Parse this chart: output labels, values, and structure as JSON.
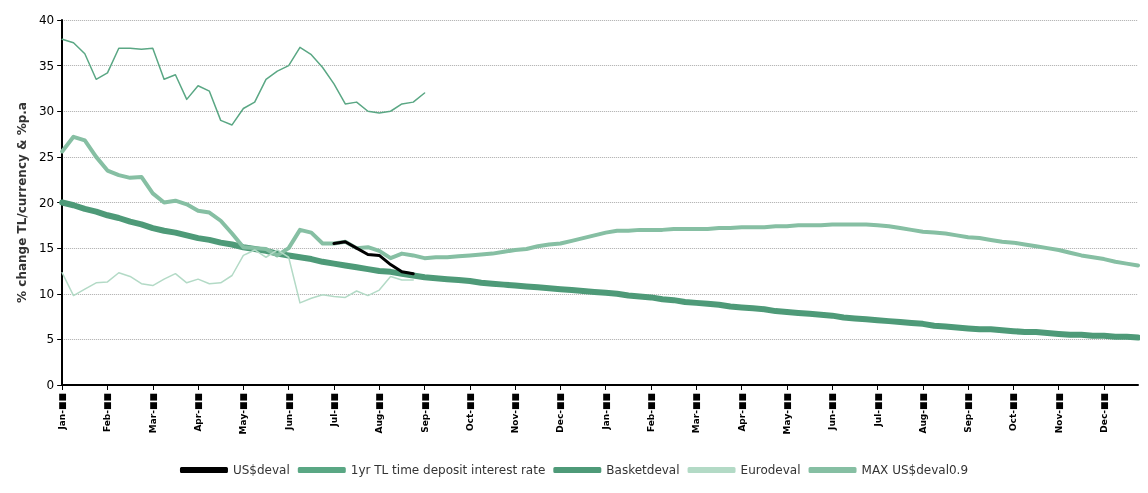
{
  "chart_data": {
    "type": "line",
    "ylabel": "% change TL/currency & %p.a",
    "categories": [
      "Jan-■■",
      null,
      null,
      null,
      "Feb-■■",
      null,
      null,
      null,
      "Mar-■■",
      null,
      null,
      null,
      "Apr-■■",
      null,
      null,
      null,
      "May-■■",
      null,
      null,
      null,
      "Jun-■■",
      null,
      null,
      null,
      "Jul-■■",
      null,
      null,
      null,
      "Aug-■■",
      null,
      null,
      null,
      "Sep-■■",
      null,
      null,
      null,
      "Oct-■■",
      null,
      null,
      null,
      "Nov-■■",
      null,
      null,
      null,
      "Dec-■■",
      null,
      null,
      null,
      "Jan-■■",
      null,
      null,
      null,
      "Feb-■■",
      null,
      null,
      null,
      "Mar-■■",
      null,
      null,
      null,
      "Apr-■■",
      null,
      null,
      null,
      "May-■■",
      null,
      null,
      null,
      "Jun-■■",
      null,
      null,
      null,
      "Jul-■■",
      null,
      null,
      null,
      "Aug-■■",
      null,
      null,
      null,
      "Sep-■■",
      null,
      null,
      null,
      "Oct-■■",
      null,
      null,
      null,
      "Nov-■■",
      null,
      null,
      null,
      "Dec-■■",
      null,
      null,
      null
    ],
    "ylim": [
      0,
      40
    ],
    "yticks": [
      0,
      5,
      10,
      15,
      20,
      25,
      30,
      35,
      40
    ],
    "grid": "y",
    "legend": "bottom",
    "marker": "none",
    "line_style": "solid",
    "series": [
      {
        "name": "US$deval",
        "color": "#000000",
        "values": [
          null,
          null,
          null,
          null,
          null,
          null,
          null,
          null,
          null,
          null,
          null,
          null,
          null,
          null,
          null,
          null,
          null,
          null,
          null,
          null,
          null,
          null,
          null,
          null,
          15.5,
          15.7,
          15.0,
          14.3,
          14.2,
          13.2,
          12.4,
          12.2,
          null,
          null,
          null,
          null,
          null,
          null,
          null,
          null,
          null,
          null,
          null,
          null,
          null,
          null,
          null,
          null,
          null,
          null,
          null,
          null,
          null,
          null,
          null,
          null,
          null,
          null,
          null,
          null,
          null,
          null,
          null,
          null,
          null,
          null,
          null,
          null,
          null,
          null,
          null,
          null,
          null,
          null,
          null,
          null,
          null,
          null,
          null,
          null,
          null,
          null,
          null,
          null,
          null,
          null,
          null,
          null,
          null,
          null,
          null,
          null,
          null,
          null,
          null,
          null
        ]
      },
      {
        "name": "1yr TL time deposit interest rate",
        "color": "#5aa784",
        "values": [
          37.9,
          37.5,
          36.3,
          33.5,
          34.2,
          36.9,
          36.9,
          36.8,
          36.9,
          33.5,
          34,
          31.3,
          32.8,
          32.2,
          29,
          28.5,
          30.3,
          31,
          33.5,
          34.4,
          35,
          37,
          36.2,
          34.8,
          33,
          30.8,
          31,
          30,
          29.8,
          30,
          30.8,
          31,
          32,
          null,
          null,
          null,
          null,
          null,
          null,
          null,
          null,
          null,
          null,
          null,
          null,
          null,
          null,
          null,
          null,
          null,
          null,
          null,
          null,
          null,
          null,
          null,
          null,
          null,
          null,
          null,
          null,
          null,
          null,
          null,
          null,
          null,
          null,
          null,
          null,
          null,
          null,
          null,
          null,
          null,
          null,
          null,
          null,
          null,
          null,
          null,
          null,
          null,
          null,
          null,
          null,
          null,
          null,
          null,
          null,
          null,
          null,
          null,
          null,
          null,
          null,
          null
        ]
      },
      {
        "name": "Basketdeval",
        "color": "#4e9a78",
        "values": [
          20,
          19.7,
          19.3,
          19.0,
          18.6,
          18.3,
          17.9,
          17.6,
          17.2,
          16.9,
          16.7,
          16.4,
          16.1,
          15.9,
          15.6,
          15.4,
          15.1,
          14.9,
          14.7,
          14.4,
          14.2,
          14.0,
          13.8,
          13.5,
          13.3,
          13.1,
          12.9,
          12.7,
          12.5,
          12.4,
          12.2,
          12.0,
          11.8,
          11.7,
          11.6,
          11.5,
          11.4,
          11.2,
          11.1,
          11.0,
          10.9,
          10.8,
          10.7,
          10.6,
          10.5,
          10.4,
          10.3,
          10.2,
          10.1,
          10.0,
          9.8,
          9.7,
          9.6,
          9.4,
          9.3,
          9.1,
          9.0,
          8.9,
          8.8,
          8.6,
          8.5,
          8.4,
          8.3,
          8.1,
          8.0,
          7.9,
          7.8,
          7.7,
          7.6,
          7.4,
          7.3,
          7.2,
          7.1,
          7.0,
          6.9,
          6.8,
          6.7,
          6.5,
          6.4,
          6.3,
          6.2,
          6.1,
          6.1,
          6.0,
          5.9,
          5.8,
          5.8,
          5.7,
          5.6,
          5.5,
          5.5,
          5.4,
          5.4,
          5.3,
          5.3,
          5.2
        ]
      },
      {
        "name": "Eurodeval",
        "color": "#b3dac6",
        "values": [
          12.3,
          9.8,
          10.5,
          11.2,
          11.3,
          12.3,
          11.9,
          11.1,
          10.9,
          11.6,
          12.2,
          11.2,
          11.6,
          11.1,
          11.2,
          12.0,
          14.2,
          14.8,
          14,
          14.8,
          14,
          9,
          9.5,
          9.9,
          9.7,
          9.6,
          10.3,
          9.8,
          10.4,
          11.9,
          11.5,
          11.5,
          null,
          null,
          null,
          null,
          null,
          null,
          null,
          null,
          null,
          null,
          null,
          null,
          null,
          null,
          null,
          null,
          null,
          null,
          null,
          null,
          null,
          null,
          null,
          null,
          null,
          null,
          null,
          null,
          null,
          null,
          null,
          null,
          null,
          null,
          null,
          null,
          null,
          null,
          null,
          null,
          null,
          null,
          null,
          null,
          null,
          null,
          null,
          null,
          null,
          null,
          null,
          null,
          null,
          null,
          null,
          null,
          null,
          null,
          null,
          null,
          null,
          null,
          null,
          null
        ]
      },
      {
        "name": "MAX US$deval0.9",
        "color": "#86bfa3",
        "values": [
          25.6,
          27.2,
          26.8,
          25.0,
          23.5,
          23,
          22.7,
          22.8,
          21,
          20,
          20.2,
          19.8,
          19.1,
          18.9,
          18,
          16.6,
          15.1,
          15,
          14.9,
          14.2,
          15.0,
          17,
          16.7,
          15.5,
          15.5,
          15.7,
          15.0,
          15.1,
          14.7,
          13.9,
          14.4,
          14.2,
          13.9,
          14.0,
          14.0,
          14.1,
          14.2,
          14.3,
          14.4,
          14.6,
          14.8,
          14.9,
          15.2,
          15.4,
          15.5,
          15.8,
          16.1,
          16.4,
          16.7,
          16.9,
          16.9,
          17.0,
          17.0,
          17.0,
          17.1,
          17.1,
          17.1,
          17.1,
          17.2,
          17.2,
          17.3,
          17.3,
          17.3,
          17.4,
          17.4,
          17.5,
          17.5,
          17.5,
          17.6,
          17.6,
          17.6,
          17.6,
          17.5,
          17.4,
          17.2,
          17.0,
          16.8,
          16.7,
          16.6,
          16.4,
          16.2,
          16.1,
          15.9,
          15.7,
          15.6,
          15.4,
          15.2,
          15.0,
          14.8,
          14.5,
          14.2,
          14.0,
          13.8,
          13.5,
          13.3,
          13.1
        ]
      }
    ]
  }
}
